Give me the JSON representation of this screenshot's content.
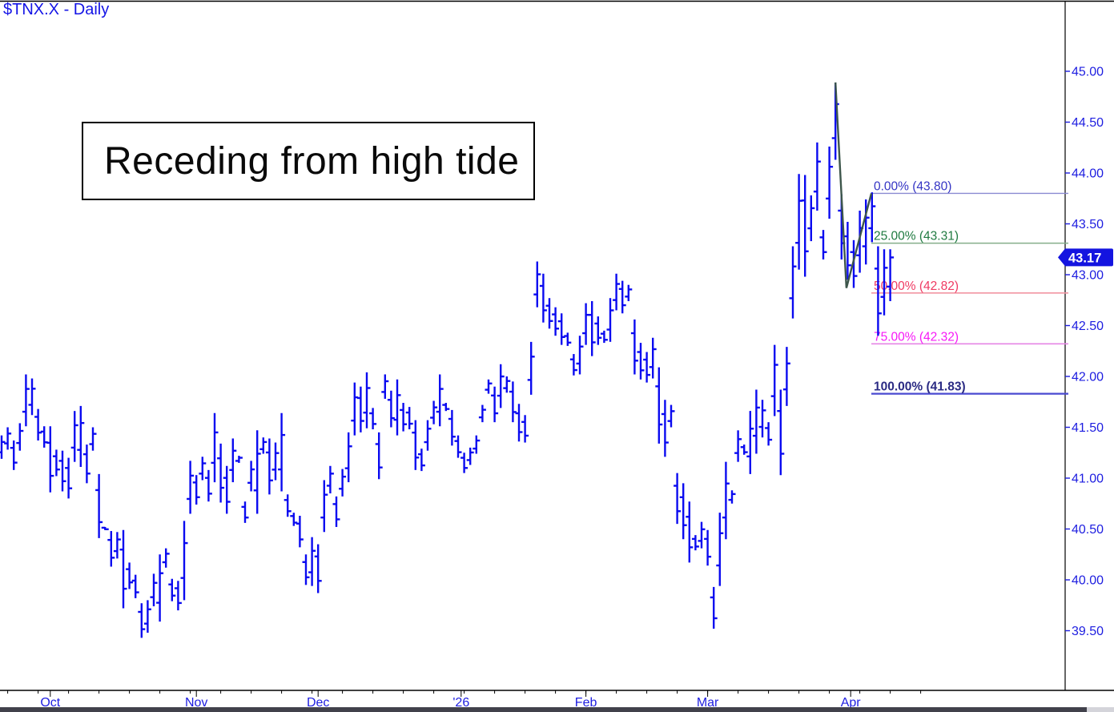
{
  "window": {
    "title": "$TNX.X - Daily"
  },
  "annotation": {
    "text": "Receding from high tide"
  },
  "price_tag": {
    "value": "43.17",
    "bg": "#1414e0",
    "fg": "#ffffff"
  },
  "colors": {
    "bar": "#0a0af0",
    "axis": "#000000",
    "axis_label": "#1d1de0",
    "title": "#1414e6",
    "zigzag": "#3d564b",
    "strip": "#41414b"
  },
  "y_axis": {
    "labels": [
      "45.00",
      "44.50",
      "44.00",
      "43.50",
      "43.00",
      "42.50",
      "42.00",
      "41.50",
      "41.00",
      "40.50",
      "40.00",
      "39.50"
    ]
  },
  "x_axis": {
    "months": [
      {
        "label": "Oct",
        "i": 8
      },
      {
        "label": "Nov",
        "i": 32
      },
      {
        "label": "Dec",
        "i": 52
      },
      {
        "label": "'26",
        "i": 75.5
      },
      {
        "label": "Feb",
        "i": 96
      },
      {
        "label": "Mar",
        "i": 116
      },
      {
        "label": "Apr",
        "i": 139.5
      }
    ]
  },
  "fib_levels": [
    {
      "label": "0.00% (43.80)",
      "price": 43.8,
      "text": "#3434c4",
      "line": "#8a8ad2",
      "lw": 1.4,
      "bold": false
    },
    {
      "label": "25.00% (43.31)",
      "price": 43.31,
      "text": "#1f7a40",
      "line": "#84ae8a",
      "lw": 1.4,
      "bold": false
    },
    {
      "label": "50.00% (42.82)",
      "price": 42.82,
      "text": "#ef3a62",
      "line": "#f295a2",
      "lw": 1.6,
      "bold": false
    },
    {
      "label": "75.00% (42.32)",
      "price": 42.32,
      "text": "#f718f7",
      "line": "#e686e6",
      "lw": 1.6,
      "bold": false
    },
    {
      "label": "100.00% (41.83)",
      "price": 41.83,
      "text": "#2b2b84",
      "line": "#4a4ad0",
      "lw": 2.2,
      "bold": true
    }
  ],
  "zigzag": {
    "points": [
      {
        "i": 137,
        "p": 44.89
      },
      {
        "i": 138.8,
        "p": 42.87
      },
      {
        "i": 142.9,
        "p": 43.8
      }
    ]
  },
  "chart_data": {
    "type": "bar",
    "style": "ohlc-daily-bars",
    "symbol": "$TNX.X",
    "timeframe": "Daily",
    "title": "$TNX.X - Daily",
    "ylim": [
      38.9,
      45.3
    ],
    "y_ticks": [
      45.0,
      44.5,
      44.0,
      43.5,
      43.0,
      42.5,
      42.0,
      41.5,
      41.0,
      40.5,
      40.0,
      39.5
    ],
    "x_months": [
      "Oct",
      "Nov",
      "Dec",
      "'26",
      "Feb",
      "Mar",
      "Apr"
    ],
    "last_close": 43.17,
    "bars_high_low": [
      [
        41.42,
        41.19
      ],
      [
        41.5,
        41.28
      ],
      [
        41.37,
        41.08
      ],
      [
        41.54,
        41.27
      ],
      [
        42.02,
        41.51
      ],
      [
        41.98,
        41.62
      ],
      [
        41.68,
        41.37
      ],
      [
        41.51,
        41.3
      ],
      [
        41.51,
        40.86
      ],
      [
        41.28,
        41.02
      ],
      [
        41.27,
        40.87
      ],
      [
        41.2,
        40.8
      ],
      [
        41.66,
        41.16
      ],
      [
        41.71,
        41.11
      ],
      [
        41.33,
        40.95
      ],
      [
        41.5,
        41.27
      ],
      [
        41.04,
        40.41
      ],
      [
        40.52,
        40.49
      ],
      [
        40.48,
        40.13
      ],
      [
        40.47,
        40.21
      ],
      [
        40.49,
        39.72
      ],
      [
        40.17,
        39.91
      ],
      [
        40.05,
        39.82
      ],
      [
        39.77,
        39.43
      ],
      [
        39.8,
        39.48
      ],
      [
        40.06,
        39.74
      ],
      [
        40.25,
        39.59
      ],
      [
        40.31,
        40.12
      ],
      [
        40.01,
        39.79
      ],
      [
        39.99,
        39.7
      ],
      [
        40.58,
        39.8
      ],
      [
        41.17,
        40.65
      ],
      [
        41.03,
        40.74
      ],
      [
        41.21,
        40.98
      ],
      [
        41.08,
        40.77
      ],
      [
        41.64,
        40.96
      ],
      [
        41.34,
        40.76
      ],
      [
        41.12,
        40.65
      ],
      [
        41.39,
        40.96
      ],
      [
        41.22,
        41.15
      ],
      [
        40.77,
        40.56
      ],
      [
        41.17,
        40.87
      ],
      [
        41.47,
        40.65
      ],
      [
        41.4,
        41.24
      ],
      [
        41.39,
        40.84
      ],
      [
        41.35,
        40.98
      ],
      [
        41.64,
        40.87
      ],
      [
        40.84,
        40.62
      ],
      [
        40.66,
        40.53
      ],
      [
        40.63,
        40.32
      ],
      [
        40.25,
        39.95
      ],
      [
        40.42,
        39.94
      ],
      [
        40.35,
        39.87
      ],
      [
        40.98,
        40.47
      ],
      [
        41.12,
        40.85
      ],
      [
        40.82,
        40.52
      ],
      [
        41.09,
        40.82
      ],
      [
        41.45,
        40.96
      ],
      [
        41.94,
        41.42
      ],
      [
        41.9,
        41.45
      ],
      [
        42.04,
        41.49
      ],
      [
        41.69,
        41.48
      ],
      [
        41.45,
        40.99
      ],
      [
        42.02,
        41.78
      ],
      [
        41.86,
        41.5
      ],
      [
        41.97,
        41.42
      ],
      [
        41.74,
        41.46
      ],
      [
        41.7,
        41.48
      ],
      [
        41.57,
        41.08
      ],
      [
        41.29,
        41.07
      ],
      [
        41.57,
        41.27
      ],
      [
        41.76,
        41.53
      ],
      [
        42.02,
        41.51
      ],
      [
        41.74,
        41.66
      ],
      [
        41.67,
        41.32
      ],
      [
        41.42,
        41.2
      ],
      [
        41.25,
        41.05
      ],
      [
        41.3,
        41.13
      ],
      [
        41.42,
        41.24
      ],
      [
        41.72,
        41.55
      ],
      [
        41.97,
        41.83
      ],
      [
        41.9,
        41.55
      ],
      [
        42.12,
        41.69
      ],
      [
        42.0,
        41.84
      ],
      [
        41.95,
        41.55
      ],
      [
        41.73,
        41.36
      ],
      [
        41.62,
        41.35
      ],
      [
        42.34,
        41.82
      ],
      [
        43.13,
        42.68
      ],
      [
        43.01,
        42.53
      ],
      [
        42.77,
        42.47
      ],
      [
        42.68,
        42.4
      ],
      [
        42.62,
        42.31
      ],
      [
        42.43,
        42.3
      ],
      [
        42.22,
        42.01
      ],
      [
        42.4,
        42.02
      ],
      [
        42.72,
        42.31
      ],
      [
        42.74,
        42.2
      ],
      [
        42.59,
        42.31
      ],
      [
        42.45,
        42.33
      ],
      [
        42.77,
        42.34
      ],
      [
        43.01,
        42.65
      ],
      [
        42.94,
        42.62
      ],
      [
        42.9,
        42.74
      ],
      [
        42.56,
        42.02
      ],
      [
        42.33,
        41.97
      ],
      [
        42.24,
        41.94
      ],
      [
        42.38,
        41.98
      ],
      [
        42.09,
        41.34
      ],
      [
        41.77,
        41.21
      ],
      [
        41.72,
        41.5
      ],
      [
        41.05,
        40.55
      ],
      [
        40.95,
        40.4
      ],
      [
        40.77,
        40.17
      ],
      [
        40.44,
        40.29
      ],
      [
        40.57,
        40.31
      ],
      [
        40.49,
        40.14
      ],
      [
        39.93,
        39.52
      ],
      [
        40.66,
        39.94
      ],
      [
        41.16,
        40.4
      ],
      [
        40.88,
        40.75
      ],
      [
        41.47,
        41.16
      ],
      [
        41.33,
        41.23
      ],
      [
        41.66,
        41.04
      ],
      [
        41.87,
        41.24
      ],
      [
        41.77,
        41.4
      ],
      [
        41.55,
        41.32
      ],
      [
        42.31,
        41.61
      ],
      [
        41.87,
        41.03
      ],
      [
        42.29,
        41.71
      ],
      [
        43.28,
        42.57
      ],
      [
        43.99,
        43.05
      ],
      [
        43.98,
        42.98
      ],
      [
        43.78,
        43.33
      ],
      [
        44.3,
        43.63
      ],
      [
        43.44,
        43.15
      ],
      [
        44.26,
        43.55
      ],
      [
        44.89,
        44.13
      ],
      [
        43.79,
        43.15
      ],
      [
        43.52,
        42.95
      ],
      [
        43.34,
        42.87
      ],
      [
        43.63,
        43.02
      ],
      [
        43.74,
        43.1
      ],
      [
        43.81,
        43.32
      ],
      [
        43.28,
        42.4
      ],
      [
        43.25,
        42.6
      ],
      [
        43.25,
        42.74
      ]
    ]
  }
}
